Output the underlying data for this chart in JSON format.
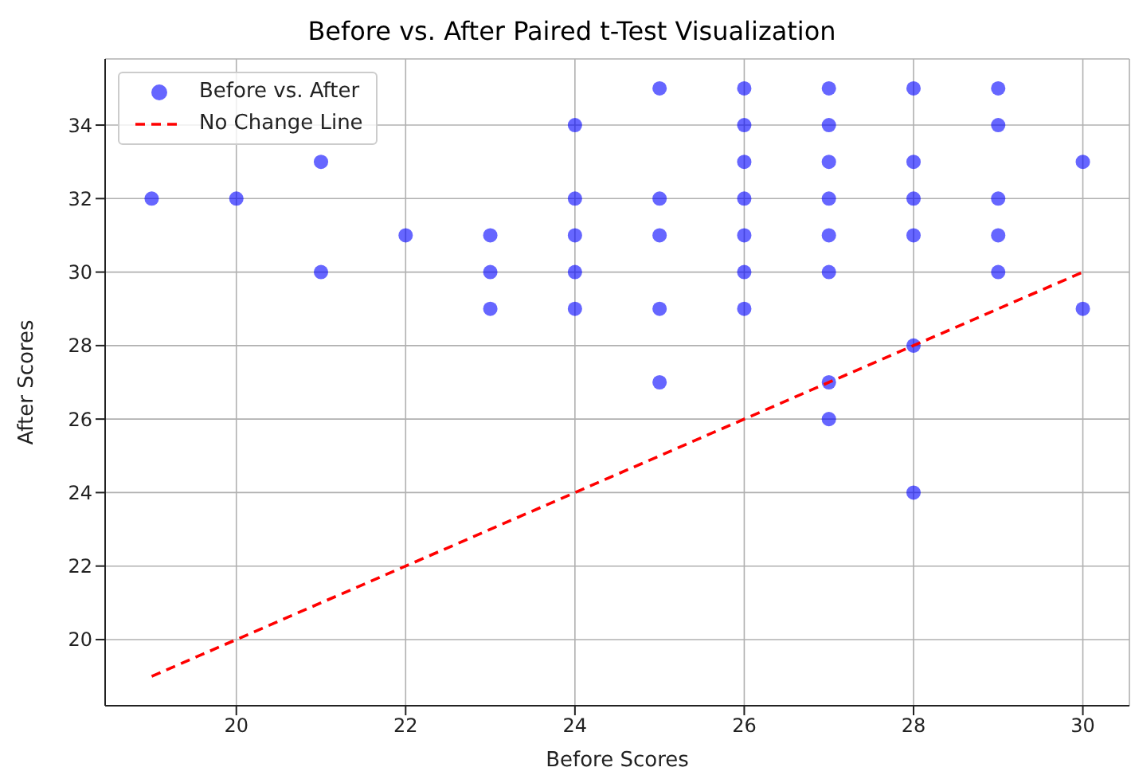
{
  "chart_data": {
    "type": "scatter",
    "title": "Before vs. After Paired t-Test Visualization",
    "xlabel": "Before Scores",
    "ylabel": "After Scores",
    "xlim": [
      18.45,
      30.55
    ],
    "ylim": [
      18.2,
      35.8
    ],
    "xticks": [
      20,
      22,
      24,
      26,
      28,
      30
    ],
    "yticks": [
      20,
      22,
      24,
      26,
      28,
      30,
      32,
      34
    ],
    "grid": true,
    "legend": "top left",
    "series": [
      {
        "name": "Before vs. After",
        "color": "#0000ff",
        "marker": "circle",
        "x": [
          19,
          20,
          21,
          21,
          22,
          23,
          23,
          23,
          24,
          24,
          24,
          24,
          24,
          25,
          25,
          25,
          25,
          25,
          26,
          26,
          26,
          26,
          26,
          26,
          26,
          27,
          27,
          27,
          27,
          27,
          27,
          27,
          27,
          28,
          28,
          28,
          28,
          28,
          28,
          29,
          29,
          29,
          29,
          29,
          30,
          30
        ],
        "values": [
          32,
          32,
          33,
          30,
          31,
          31,
          30,
          29,
          34,
          32,
          31,
          30,
          29,
          35,
          32,
          31,
          29,
          27,
          35,
          34,
          33,
          32,
          31,
          30,
          29,
          35,
          34,
          33,
          32,
          31,
          30,
          27,
          26,
          35,
          33,
          32,
          31,
          28,
          24,
          35,
          34,
          32,
          31,
          30,
          33,
          29
        ]
      },
      {
        "name": "No Change Line",
        "type": "line",
        "color": "#ff0000",
        "line_style": "dashed",
        "marker": "none",
        "x": [
          19,
          30
        ],
        "values": [
          19,
          30
        ]
      }
    ]
  }
}
